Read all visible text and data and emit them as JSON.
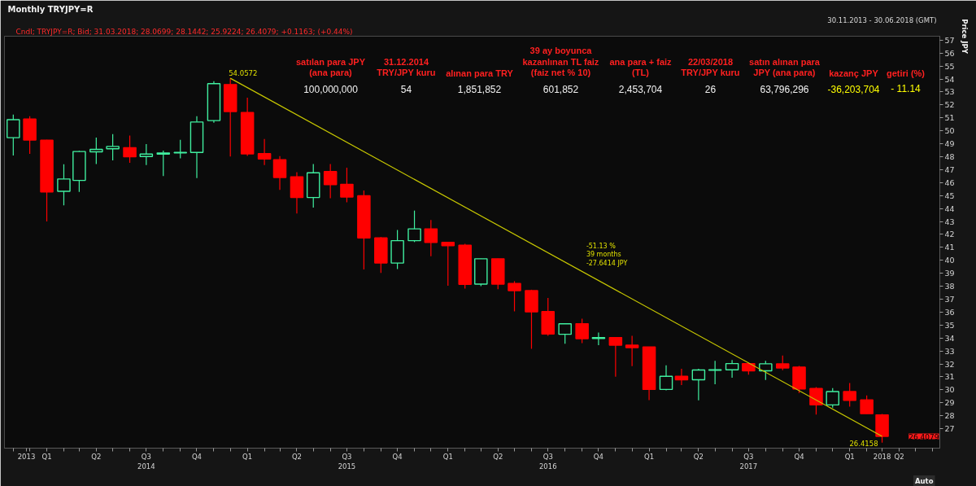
{
  "chart_data": {
    "type": "candlestick",
    "title": "Monthly TRYJPY=R",
    "subtitle": "Cndl; TRYJPY=R; Bid; 31.03.2018; 28.0699; 28.1442; 25.9224; 26.4079; +0.1163; (+0.44%)",
    "ylabel": "Price JPY",
    "x": [
      "2013-11",
      "2013-12",
      "2014-01",
      "2014-02",
      "2014-03",
      "2014-04",
      "2014-05",
      "2014-06",
      "2014-07",
      "2014-08",
      "2014-09",
      "2014-10",
      "2014-11",
      "2014-12",
      "2015-01",
      "2015-02",
      "2015-03",
      "2015-04",
      "2015-05",
      "2015-06",
      "2015-07",
      "2015-08",
      "2015-09",
      "2015-10",
      "2015-11",
      "2015-12",
      "2016-01",
      "2016-02",
      "2016-03",
      "2016-04",
      "2016-05",
      "2016-06",
      "2016-07",
      "2016-08",
      "2016-09",
      "2016-10",
      "2016-11",
      "2016-12",
      "2017-01",
      "2017-02",
      "2017-03",
      "2017-04",
      "2017-05",
      "2017-06",
      "2017-07",
      "2017-08",
      "2017-09",
      "2017-10",
      "2017-11",
      "2017-12",
      "2018-01",
      "2018-02",
      "2018-03"
    ],
    "ohlc": [
      [
        49.47,
        51.25,
        48.1,
        50.86
      ],
      [
        50.91,
        51.13,
        48.22,
        49.29
      ],
      [
        49.27,
        49.3,
        43.0,
        45.28
      ],
      [
        45.33,
        47.42,
        44.25,
        46.28
      ],
      [
        46.17,
        48.45,
        45.28,
        48.4
      ],
      [
        48.38,
        49.47,
        47.44,
        48.56
      ],
      [
        48.61,
        49.74,
        47.72,
        48.79
      ],
      [
        48.7,
        49.63,
        47.53,
        47.99
      ],
      [
        48.01,
        48.97,
        47.35,
        48.2
      ],
      [
        48.2,
        48.47,
        46.51,
        48.29
      ],
      [
        48.29,
        49.31,
        47.88,
        48.33
      ],
      [
        48.33,
        51.13,
        46.35,
        50.68
      ],
      [
        50.79,
        53.82,
        50.63,
        53.64
      ],
      [
        53.57,
        54.0572,
        48.01,
        51.48
      ],
      [
        51.41,
        52.55,
        48.06,
        48.22
      ],
      [
        48.24,
        49.36,
        47.35,
        47.83
      ],
      [
        47.76,
        48.04,
        45.44,
        46.4
      ],
      [
        46.44,
        46.81,
        43.62,
        44.85
      ],
      [
        44.85,
        47.44,
        44.07,
        46.76
      ],
      [
        46.85,
        47.44,
        44.8,
        45.85
      ],
      [
        45.87,
        47.15,
        44.48,
        44.89
      ],
      [
        44.98,
        45.39,
        39.29,
        41.73
      ],
      [
        41.73,
        41.79,
        39.02,
        39.79
      ],
      [
        39.79,
        42.34,
        39.33,
        41.52
      ],
      [
        41.52,
        43.84,
        41.41,
        42.43
      ],
      [
        42.43,
        43.12,
        40.31,
        41.38
      ],
      [
        41.38,
        41.43,
        38.04,
        41.13
      ],
      [
        41.16,
        41.27,
        37.81,
        38.15
      ],
      [
        38.16,
        40.13,
        38.0,
        40.12
      ],
      [
        40.12,
        40.13,
        37.77,
        38.16
      ],
      [
        38.21,
        38.39,
        36.06,
        37.66
      ],
      [
        37.66,
        37.73,
        33.17,
        36.02
      ],
      [
        36.04,
        37.09,
        34.17,
        34.31
      ],
      [
        34.29,
        35.11,
        33.56,
        35.1
      ],
      [
        35.11,
        35.5,
        33.61,
        33.95
      ],
      [
        33.97,
        34.42,
        33.45,
        34.03
      ],
      [
        34.04,
        34.08,
        31.01,
        33.45
      ],
      [
        33.45,
        34.17,
        31.83,
        33.26
      ],
      [
        33.31,
        33.33,
        29.21,
        30.03
      ],
      [
        30.03,
        31.9,
        29.96,
        31.05
      ],
      [
        31.05,
        31.62,
        30.37,
        30.78
      ],
      [
        30.78,
        31.62,
        29.19,
        31.53
      ],
      [
        31.51,
        32.24,
        30.44,
        31.55
      ],
      [
        31.55,
        32.31,
        30.94,
        32.03
      ],
      [
        32.03,
        32.08,
        31.17,
        31.47
      ],
      [
        31.47,
        32.24,
        30.76,
        32.01
      ],
      [
        32.01,
        32.65,
        31.51,
        31.69
      ],
      [
        31.76,
        31.85,
        29.75,
        30.07
      ],
      [
        30.1,
        30.21,
        28.09,
        28.84
      ],
      [
        28.84,
        30.14,
        28.62,
        29.87
      ],
      [
        29.87,
        30.53,
        28.71,
        29.19
      ],
      [
        29.23,
        29.57,
        28.16,
        28.16
      ],
      [
        28.0699,
        28.1442,
        25.9224,
        26.4079
      ]
    ],
    "colors": [
      "#40f0a0",
      "#ff0000",
      "#ff0000",
      "#40f0a0",
      "#40f0a0",
      "#40f0a0",
      "#40f0a0",
      "#ff0000",
      "#40f0a0",
      "#40f0a0",
      "#40f0a0",
      "#40f0a0",
      "#40f0a0",
      "#ff0000",
      "#ff0000",
      "#ff0000",
      "#ff0000",
      "#ff0000",
      "#40f0a0",
      "#ff0000",
      "#ff0000",
      "#ff0000",
      "#ff0000",
      "#40f0a0",
      "#40f0a0",
      "#ff0000",
      "#ff0000",
      "#ff0000",
      "#40f0a0",
      "#ff0000",
      "#ff0000",
      "#ff0000",
      "#ff0000",
      "#40f0a0",
      "#ff0000",
      "#40f0a0",
      "#ff0000",
      "#ff0000",
      "#ff0000",
      "#40f0a0",
      "#ff0000",
      "#40f0a0",
      "#40f0a0",
      "#40f0a0",
      "#ff0000",
      "#40f0a0",
      "#ff0000",
      "#ff0000",
      "#ff0000",
      "#40f0a0",
      "#ff0000",
      "#ff0000",
      "#ff0000"
    ],
    "series": [
      {
        "type": "line",
        "x": [
          "2014-12",
          "2018-03"
        ],
        "values": [
          54.0572,
          26.4158
        ],
        "color": "#c8c800",
        "value_labels": [
          "54.0572",
          "26.4158"
        ]
      }
    ],
    "xlim": [
      "2013-10-16",
      "2018-06-14"
    ],
    "xticks": [
      {
        "value": "2013-11-01",
        "label": null
      },
      {
        "value": "2013-11-25",
        "label": "2013"
      },
      {
        "value": "2013-12-01",
        "label": null
      },
      {
        "value": "2014-01-01",
        "label": "Q1"
      },
      {
        "value": "2014-02-01",
        "label": null
      },
      {
        "value": "2014-03-01",
        "label": null
      },
      {
        "value": "2014-04-01",
        "label": "Q2"
      },
      {
        "value": "2014-05-01",
        "label": null
      },
      {
        "value": "2014-06-01",
        "label": null
      },
      {
        "value": "2014-07-01",
        "label": "Q3\n2014"
      },
      {
        "value": "2014-08-01",
        "label": null
      },
      {
        "value": "2014-09-01",
        "label": null
      },
      {
        "value": "2014-10-01",
        "label": "Q4"
      },
      {
        "value": "2014-11-01",
        "label": null
      },
      {
        "value": "2014-12-01",
        "label": null
      },
      {
        "value": "2015-01-01",
        "label": "Q1"
      },
      {
        "value": "2015-02-01",
        "label": null
      },
      {
        "value": "2015-03-01",
        "label": null
      },
      {
        "value": "2015-04-01",
        "label": "Q2"
      },
      {
        "value": "2015-05-01",
        "label": null
      },
      {
        "value": "2015-06-01",
        "label": null
      },
      {
        "value": "2015-07-01",
        "label": "Q3\n2015"
      },
      {
        "value": "2015-08-01",
        "label": null
      },
      {
        "value": "2015-09-01",
        "label": null
      },
      {
        "value": "2015-10-01",
        "label": "Q4"
      },
      {
        "value": "2015-11-01",
        "label": null
      },
      {
        "value": "2015-12-01",
        "label": null
      },
      {
        "value": "2016-01-01",
        "label": "Q1"
      },
      {
        "value": "2016-02-01",
        "label": null
      },
      {
        "value": "2016-03-01",
        "label": null
      },
      {
        "value": "2016-04-01",
        "label": "Q2"
      },
      {
        "value": "2016-05-01",
        "label": null
      },
      {
        "value": "2016-06-01",
        "label": null
      },
      {
        "value": "2016-07-01",
        "label": "Q3\n2016"
      },
      {
        "value": "2016-08-01",
        "label": null
      },
      {
        "value": "2016-09-01",
        "label": null
      },
      {
        "value": "2016-10-01",
        "label": "Q4"
      },
      {
        "value": "2016-11-01",
        "label": null
      },
      {
        "value": "2016-12-01",
        "label": null
      },
      {
        "value": "2017-01-01",
        "label": "Q1"
      },
      {
        "value": "2017-02-01",
        "label": null
      },
      {
        "value": "2017-03-01",
        "label": null
      },
      {
        "value": "2017-04-01",
        "label": "Q2"
      },
      {
        "value": "2017-05-01",
        "label": null
      },
      {
        "value": "2017-06-01",
        "label": null
      },
      {
        "value": "2017-07-01",
        "label": "Q3\n2017"
      },
      {
        "value": "2017-08-01",
        "label": null
      },
      {
        "value": "2017-09-01",
        "label": null
      },
      {
        "value": "2017-10-01",
        "label": "Q4"
      },
      {
        "value": "2017-11-01",
        "label": null
      },
      {
        "value": "2017-12-01",
        "label": null
      },
      {
        "value": "2018-01-01",
        "label": "Q1"
      },
      {
        "value": "2018-02-01",
        "label": null
      },
      {
        "value": "2018-03-01",
        "label": "2018"
      },
      {
        "value": "2018-04-01",
        "label": "Q2"
      },
      {
        "value": "2018-05-01",
        "label": null
      },
      {
        "value": "2018-06-01",
        "label": null
      }
    ],
    "ylim": [
      25.5,
      57.3
    ],
    "yticks": [
      27,
      28,
      29,
      30,
      31,
      32,
      33,
      34,
      35,
      36,
      37,
      38,
      39,
      40,
      41,
      42,
      43,
      44,
      45,
      46,
      47,
      48,
      49,
      50,
      51,
      52,
      53,
      54,
      55,
      56,
      57
    ],
    "annotations": [
      "30.11.2013 - 30.06.2018 (GMT)",
      "-51.13 %\n39 months\n-27.6414 JPY",
      "26.4079",
      "Auto",
      "satılan para JPY\n(ana para)",
      "31.12.2014\nTRY/JPY kuru",
      "alınan para TRY",
      "39 ay boyunca\nkazanlınan TL faiz\n(faiz net % 10)",
      "ana para + faiz\n(TL)",
      "22/03/2018\nTRY/JPY kuru",
      "satın alınan para\nJPY (ana para)",
      "kazanç JPY",
      "getiri (%)",
      "100,000,000",
      "54",
      "1,851,852",
      "601,852",
      "2,453,704",
      "26",
      "63,796,296",
      "-36,203,704",
      "- 11.14"
    ]
  }
}
